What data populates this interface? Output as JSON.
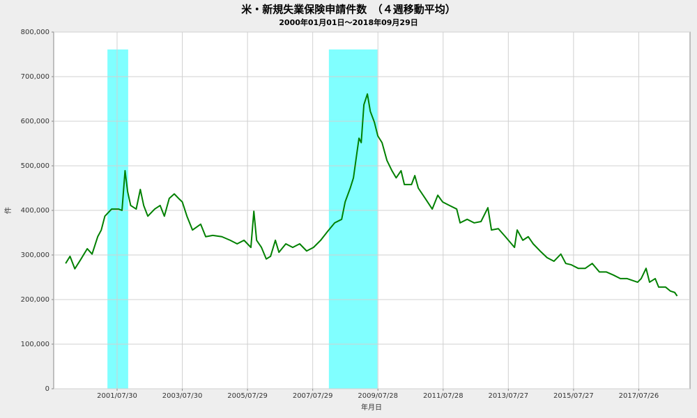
{
  "chart_data": {
    "type": "line",
    "title": "米・新規失業保険申請件数　（４週移動平均）",
    "subtitle": "2000年01月01日～2018年09月29日",
    "x_label": "年月日",
    "y_label": "件",
    "x": [
      "2000/01/01",
      "2000/02/19",
      "2000/04/13",
      "2000/06/15",
      "2000/08/30",
      "2000/10/23",
      "2000/12/25",
      "2001/02/03",
      "2001/03/15",
      "2001/05/30",
      "2001/08/15",
      "2001/09/23",
      "2001/10/27",
      "2001/11/25",
      "2001/12/29",
      "2002/03/01",
      "2002/04/16",
      "2002/05/24",
      "2002/07/09",
      "2002/09/24",
      "2002/11/24",
      "2003/01/10",
      "2003/03/06",
      "2003/05/01",
      "2003/06/18",
      "2003/07/30",
      "2003/09/20",
      "2003/11/21",
      "2004/02/21",
      "2004/04/17",
      "2004/07/05",
      "2004/10/15",
      "2005/01/16",
      "2005/04/04",
      "2005/06/20",
      "2005/09/05",
      "2005/10/08",
      "2005/11/08",
      "2006/01/01",
      "2006/02/24",
      "2006/04/13",
      "2006/06/06",
      "2006/07/16",
      "2006/10/01",
      "2006/12/17",
      "2007/03/05",
      "2007/05/22",
      "2007/08/07",
      "2007/10/26",
      "2008/01/12",
      "2008/03/31",
      "2008/06/17",
      "2008/07/26",
      "2008/09/21",
      "2008/10/27",
      "2008/12/04",
      "2008/12/28",
      "2009/01/22",
      "2009/02/21",
      "2009/04/01",
      "2009/05/04",
      "2009/06/18",
      "2009/07/27",
      "2009/09/12",
      "2009/11/06",
      "2010/01/01",
      "2010/02/17",
      "2010/04/13",
      "2010/05/20",
      "2010/08/08",
      "2010/09/14",
      "2010/10/23",
      "2011/01/08",
      "2011/03/28",
      "2011/05/29",
      "2011/07/22",
      "2011/10/08",
      "2011/12/27",
      "2012/02/03",
      "2012/04/22",
      "2012/07/09",
      "2012/09/24",
      "2012/12/10",
      "2013/01/19",
      "2013/04/06",
      "2013/06/24",
      "2013/10/04",
      "2013/11/03",
      "2014/01/05",
      "2014/03/07",
      "2014/05/01",
      "2014/07/17",
      "2014/10/04",
      "2014/12/20",
      "2015/03/07",
      "2015/05/01",
      "2015/07/02",
      "2015/09/17",
      "2015/12/05",
      "2016/02/21",
      "2016/05/11",
      "2016/07/27",
      "2016/10/15",
      "2017/01/01",
      "2017/03/18",
      "2017/07/13",
      "2017/08/22",
      "2017/10/16",
      "2017/11/24",
      "2018/01/26",
      "2018/03/06",
      "2018/05/22",
      "2018/07/16",
      "2018/09/01",
      "2018/09/29"
    ],
    "series": [
      {
        "name": "件",
        "color": "#008000",
        "values": [
          281000,
          297000,
          269000,
          289000,
          314000,
          302000,
          341000,
          356000,
          387000,
          403000,
          403000,
          400000,
          489000,
          442000,
          411000,
          403000,
          447000,
          411000,
          387000,
          403000,
          411000,
          387000,
          427000,
          437000,
          427000,
          419000,
          387000,
          356000,
          369000,
          341000,
          344000,
          341000,
          333000,
          325000,
          333000,
          317000,
          398000,
          333000,
          317000,
          291000,
          297000,
          333000,
          306000,
          325000,
          317000,
          325000,
          309000,
          317000,
          333000,
          353000,
          372000,
          380000,
          419000,
          450000,
          473000,
          528000,
          562000,
          552000,
          637000,
          661000,
          622000,
          598000,
          567000,
          552000,
          512000,
          489000,
          473000,
          489000,
          458000,
          458000,
          478000,
          450000,
          427000,
          403000,
          434000,
          419000,
          411000,
          403000,
          372000,
          380000,
          372000,
          375000,
          406000,
          356000,
          359000,
          341000,
          317000,
          356000,
          333000,
          341000,
          325000,
          309000,
          294000,
          286000,
          302000,
          281000,
          278000,
          270000,
          270000,
          281000,
          262000,
          262000,
          255000,
          247000,
          247000,
          239000,
          247000,
          270000,
          239000,
          247000,
          228000,
          228000,
          219000,
          216000,
          208000
        ]
      }
    ],
    "shaded": [
      {
        "start": "2001/04/13",
        "end": "2001/12/01"
      },
      {
        "start": "2008/01/26",
        "end": "2009/07/23"
      }
    ],
    "shade_color": "#80ffff",
    "xlim": [
      "1999/08/20",
      "2019/02/20"
    ],
    "xticks": [
      "2001/07/30",
      "2003/07/30",
      "2005/07/29",
      "2007/07/29",
      "2009/07/28",
      "2011/07/28",
      "2013/07/27",
      "2015/07/27",
      "2017/07/26"
    ],
    "ylim": [
      0,
      800000
    ],
    "yticks": [
      0,
      {
        "value": 100000,
        "label": "100,000"
      },
      {
        "value": 200000,
        "label": "200,000"
      },
      {
        "value": 300000,
        "label": "300,000"
      },
      {
        "value": 400000,
        "label": "400,000"
      },
      {
        "value": 500000,
        "label": "500,000"
      },
      {
        "value": 600000,
        "label": "600,000"
      },
      {
        "value": 700000,
        "label": "700,000"
      },
      {
        "value": 800000,
        "label": "800,000"
      }
    ],
    "grid": true
  }
}
